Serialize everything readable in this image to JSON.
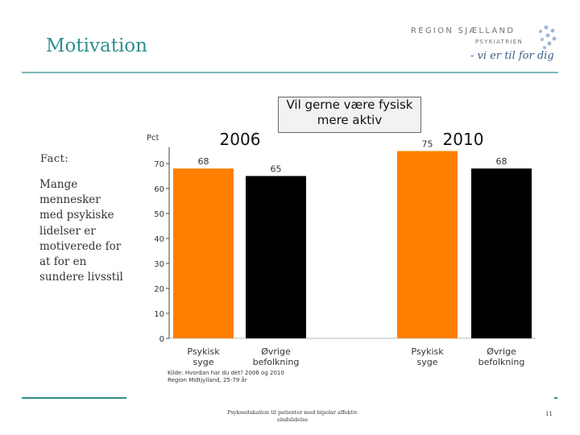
{
  "slide": {
    "title": "Motivation",
    "fact_title": "Fact:",
    "fact_lines": [
      "Mange",
      "mennesker",
      "med psykiske",
      "lidelser er",
      "motiverede for",
      "at for en",
      "sundere livsstil"
    ],
    "footer_line1": "Psykoedukation til patienter med bipolar affektiv",
    "footer_line2": "sindslidelse",
    "page_number": "11"
  },
  "logo": {
    "brand": "REGION SJÆLLAND",
    "sub": "PSYKIATRIEN",
    "tagline": "- vi er til for dig"
  },
  "colors": {
    "accent": "#2f8f8f",
    "orange": "#ff7f00",
    "black": "#000000"
  },
  "chart_data": {
    "type": "bar",
    "title_line1": "Vil gerne være fysisk",
    "title_line2": "mere aktiv",
    "ylabel": "Pct",
    "ylim": [
      0,
      75
    ],
    "yticks": [
      "0",
      "10",
      "20",
      "30",
      "40",
      "50",
      "60",
      "70"
    ],
    "groups": [
      {
        "year": "2006",
        "bars": [
          {
            "label1": "Psykisk",
            "label2": "syge",
            "value": 68,
            "value_label": "68",
            "color": "#ff7f00"
          },
          {
            "label1": "Øvrige",
            "label2": "befolkning",
            "value": 65,
            "value_label": "65",
            "color": "#000000"
          }
        ]
      },
      {
        "year": "2010",
        "bars": [
          {
            "label1": "Psykisk",
            "label2": "syge",
            "value": 75,
            "value_label": "75",
            "color": "#ff7f00"
          },
          {
            "label1": "Øvrige",
            "label2": "befolkning",
            "value": 68,
            "value_label": "68",
            "color": "#000000"
          }
        ]
      }
    ],
    "source_line1": "Kilde: Hvordan har du det? 2006 og 2010",
    "source_line2": "Region Midtjylland, 25-79 år"
  }
}
